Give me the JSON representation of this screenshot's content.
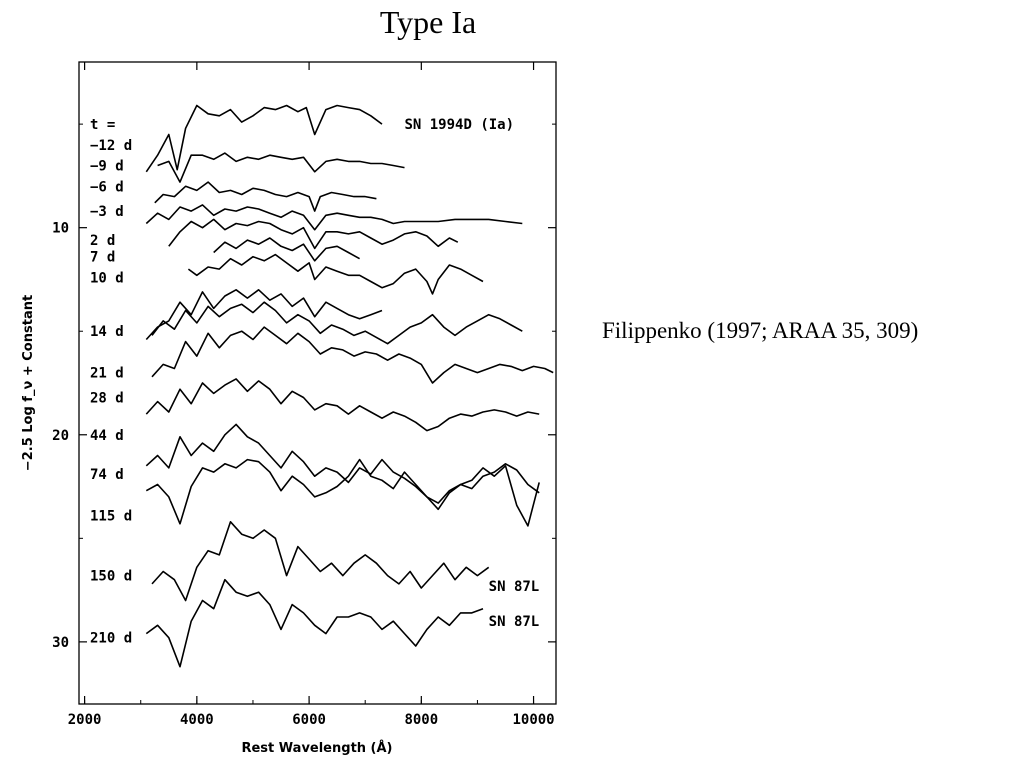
{
  "slide": {
    "title": "Type Ia",
    "citation": "Filippenko (1997; ARAA 35, 309)"
  },
  "chart_data": {
    "type": "line",
    "title": "",
    "xlabel": "Rest Wavelength (Å)",
    "ylabel": "−2.5 Log f_ν + Constant",
    "xlim": [
      1900,
      10400
    ],
    "ylim": [
      2,
      33
    ],
    "x_ticks": [
      2000,
      4000,
      6000,
      8000,
      10000
    ],
    "y_ticks": [
      10,
      20,
      30
    ],
    "y_inverted": true,
    "grid": false,
    "legend": "none",
    "annotations": [
      {
        "text": "SN 1994D (Ia)",
        "x": 7700,
        "y": 5.0
      },
      {
        "text": "SN 87L",
        "x": 9200,
        "y": 27.3
      },
      {
        "text": "SN 87L",
        "x": 9200,
        "y": 29.0
      }
    ],
    "series": [
      {
        "name": "t =",
        "label_y": 5.0,
        "x": [],
        "y": []
      },
      {
        "name": "−12 d",
        "label_y": 6.0,
        "x": [
          3100,
          3300,
          3500,
          3650,
          3800,
          4000,
          4200,
          4400,
          4600,
          4800,
          5000,
          5200,
          5400,
          5600,
          5800,
          5950,
          6100,
          6300,
          6500,
          6700,
          6900,
          7100,
          7300
        ],
        "y": [
          7.3,
          6.5,
          5.5,
          7.2,
          5.2,
          4.1,
          4.5,
          4.6,
          4.3,
          4.9,
          4.6,
          4.2,
          4.3,
          4.1,
          4.4,
          4.2,
          5.5,
          4.3,
          4.1,
          4.2,
          4.3,
          4.6,
          5.0
        ]
      },
      {
        "name": "−9 d",
        "label_y": 7.0,
        "x": [
          3300,
          3500,
          3700,
          3900,
          4100,
          4300,
          4500,
          4700,
          4900,
          5100,
          5300,
          5500,
          5700,
          5900,
          6100,
          6300,
          6500,
          6700,
          6900,
          7100,
          7300,
          7500,
          7700
        ],
        "y": [
          7.0,
          6.8,
          7.8,
          6.5,
          6.5,
          6.7,
          6.4,
          6.8,
          6.6,
          6.7,
          6.5,
          6.6,
          6.7,
          6.6,
          7.3,
          6.8,
          6.7,
          6.8,
          6.8,
          6.9,
          6.9,
          7.0,
          7.1
        ]
      },
      {
        "name": "−6 d",
        "label_y": 8.0,
        "x": [
          3250,
          3400,
          3600,
          3800,
          4000,
          4200,
          4400,
          4600,
          4800,
          5000,
          5200,
          5400,
          5600,
          5800,
          6000,
          6100,
          6200,
          6400,
          6600,
          6800,
          7000,
          7200
        ],
        "y": [
          8.8,
          8.4,
          8.5,
          8.0,
          8.2,
          7.8,
          8.3,
          8.2,
          8.4,
          8.1,
          8.2,
          8.4,
          8.5,
          8.3,
          8.5,
          9.2,
          8.5,
          8.3,
          8.4,
          8.5,
          8.5,
          8.6
        ]
      },
      {
        "name": "−3 d",
        "label_y": 9.2,
        "x": [
          3100,
          3300,
          3500,
          3700,
          3900,
          4100,
          4300,
          4500,
          4700,
          4900,
          5100,
          5300,
          5500,
          5700,
          5900,
          6100,
          6300,
          6500,
          6700,
          6900,
          7100,
          7300,
          7500,
          7700,
          8000,
          8300,
          8600,
          8900,
          9200,
          9500,
          9800
        ],
        "y": [
          9.8,
          9.3,
          9.6,
          9.0,
          9.2,
          8.9,
          9.4,
          9.1,
          9.2,
          9.0,
          9.1,
          9.3,
          9.5,
          9.2,
          9.4,
          10.1,
          9.4,
          9.3,
          9.4,
          9.5,
          9.5,
          9.6,
          9.8,
          9.7,
          9.7,
          9.7,
          9.6,
          9.6,
          9.6,
          9.7,
          9.8
        ]
      },
      {
        "name": "2 d",
        "label_y": 10.6,
        "x": [
          3500,
          3700,
          3900,
          4100,
          4300,
          4500,
          4700,
          4900,
          5100,
          5300,
          5500,
          5700,
          5900,
          6100,
          6300,
          6500,
          6700,
          6900,
          7100,
          7300,
          7500,
          7700,
          7900,
          8100,
          8300,
          8500,
          8650
        ],
        "y": [
          10.9,
          10.2,
          9.7,
          10.0,
          9.6,
          10.1,
          9.8,
          9.9,
          9.7,
          9.8,
          10.1,
          10.3,
          10.0,
          11.0,
          10.2,
          10.2,
          10.3,
          10.2,
          10.5,
          10.8,
          10.6,
          10.3,
          10.2,
          10.4,
          10.9,
          10.5,
          10.7
        ]
      },
      {
        "name": "7 d",
        "label_y": 11.4,
        "x": [
          4300,
          4500,
          4700,
          4900,
          5100,
          5300,
          5500,
          5700,
          5900,
          6100,
          6300,
          6500,
          6700,
          6900
        ],
        "y": [
          11.2,
          10.7,
          11.0,
          10.6,
          10.8,
          10.5,
          10.9,
          11.1,
          10.8,
          11.6,
          11.0,
          10.9,
          11.2,
          11.5
        ]
      },
      {
        "name": "10 d",
        "label_y": 12.4,
        "x": [
          3850,
          4000,
          4200,
          4400,
          4600,
          4800,
          5000,
          5200,
          5400,
          5600,
          5800,
          6000,
          6100,
          6300,
          6500,
          6700,
          6900,
          7100,
          7300,
          7500,
          7700,
          7900,
          8100,
          8200,
          8300,
          8500,
          8700,
          8900,
          9100
        ],
        "y": [
          12.0,
          12.3,
          11.9,
          12.0,
          11.5,
          11.8,
          11.4,
          11.6,
          11.3,
          11.7,
          12.1,
          11.7,
          12.5,
          11.9,
          12.1,
          12.3,
          12.3,
          12.6,
          12.9,
          12.7,
          12.2,
          12.0,
          12.6,
          13.2,
          12.5,
          11.8,
          12.0,
          12.3,
          12.6
        ]
      },
      {
        "name": "14 d",
        "label_y": 15.0,
        "x": [
          3100,
          3300,
          3500,
          3700,
          3900,
          4100,
          4300,
          4500,
          4700,
          4900,
          5100,
          5300,
          5500,
          5700,
          5900,
          6100,
          6300,
          6500,
          6700,
          6900,
          7100,
          7300
        ],
        "y": [
          15.4,
          14.8,
          14.5,
          13.6,
          14.2,
          13.1,
          13.9,
          13.3,
          13.0,
          13.4,
          13.0,
          13.5,
          13.2,
          13.8,
          13.4,
          14.3,
          13.6,
          13.9,
          14.2,
          14.4,
          14.2,
          14.0
        ]
      },
      {
        "name": "21 d",
        "label_y": 17.0,
        "x": [
          3200,
          3400,
          3600,
          3800,
          4000,
          4200,
          4400,
          4600,
          4800,
          5000,
          5200,
          5400,
          5600,
          5800,
          6000,
          6200,
          6400,
          6600,
          6800,
          7000,
          7200,
          7400,
          7600,
          7800,
          8000,
          8200,
          8400,
          8600,
          8800,
          9000,
          9200,
          9400,
          9600,
          9800
        ],
        "y": [
          15.2,
          14.5,
          14.9,
          14.0,
          14.6,
          13.8,
          14.3,
          13.9,
          13.7,
          14.1,
          13.6,
          14.0,
          14.6,
          14.2,
          14.5,
          15.1,
          14.7,
          14.9,
          15.2,
          15.0,
          15.3,
          15.6,
          15.2,
          14.8,
          14.6,
          14.2,
          14.8,
          15.2,
          14.8,
          14.5,
          14.2,
          14.4,
          14.7,
          15.0
        ]
      },
      {
        "name": "28 d",
        "label_y": 18.2,
        "x": [
          3200,
          3400,
          3600,
          3800,
          4000,
          4200,
          4400,
          4600,
          4800,
          5000,
          5200,
          5400,
          5600,
          5800,
          6000,
          6200,
          6400,
          6600,
          6800,
          7000,
          7200,
          7400,
          7600,
          7800,
          8000,
          8200,
          8400,
          8600,
          8800,
          9000,
          9200,
          9400,
          9600,
          9800,
          10000,
          10200,
          10350
        ],
        "y": [
          17.2,
          16.6,
          16.8,
          15.5,
          16.2,
          15.1,
          15.8,
          15.2,
          15.0,
          15.4,
          14.8,
          15.2,
          15.6,
          15.1,
          15.5,
          16.1,
          15.8,
          15.9,
          16.2,
          16.0,
          16.1,
          16.4,
          16.1,
          16.3,
          16.6,
          17.5,
          17.0,
          16.6,
          16.8,
          17.0,
          16.8,
          16.6,
          16.7,
          16.9,
          16.7,
          16.8,
          17.0
        ]
      },
      {
        "name": "44 d",
        "label_y": 20.0,
        "x": [
          3100,
          3300,
          3500,
          3700,
          3900,
          4100,
          4300,
          4500,
          4700,
          4900,
          5100,
          5300,
          5500,
          5700,
          5900,
          6100,
          6300,
          6500,
          6700,
          6900,
          7100,
          7300,
          7500,
          7700,
          7900,
          8100,
          8300,
          8500,
          8700,
          8900,
          9100,
          9300,
          9500,
          9700,
          9900,
          10100
        ],
        "y": [
          19.0,
          18.4,
          18.9,
          17.8,
          18.5,
          17.5,
          18.0,
          17.6,
          17.3,
          17.9,
          17.4,
          17.8,
          18.5,
          17.9,
          18.2,
          18.8,
          18.5,
          18.6,
          19.0,
          18.6,
          18.9,
          19.2,
          18.9,
          19.1,
          19.4,
          19.8,
          19.6,
          19.2,
          19.0,
          19.1,
          18.9,
          18.8,
          18.9,
          19.1,
          18.9,
          19.0
        ]
      },
      {
        "name": "74 d",
        "label_y": 21.9,
        "x": [
          3100,
          3300,
          3500,
          3700,
          3900,
          4100,
          4300,
          4500,
          4700,
          4900,
          5100,
          5300,
          5500,
          5700,
          5900,
          6100,
          6300,
          6500,
          6700,
          6900,
          7100,
          7300,
          7500,
          7700,
          7900,
          8100,
          8300,
          8500,
          8700,
          8900,
          9100,
          9300,
          9500,
          9700,
          9900,
          10100
        ],
        "y": [
          21.5,
          21.0,
          21.6,
          20.1,
          21.0,
          20.4,
          20.8,
          20.0,
          19.5,
          20.1,
          20.4,
          21.0,
          21.6,
          20.8,
          21.3,
          22.0,
          21.6,
          21.8,
          22.3,
          21.6,
          21.9,
          21.2,
          21.8,
          22.1,
          22.5,
          23.0,
          23.3,
          22.7,
          22.4,
          22.6,
          22.0,
          21.8,
          21.4,
          21.7,
          22.4,
          22.8
        ]
      },
      {
        "name": "115 d",
        "label_y": 23.9,
        "x": [
          3100,
          3300,
          3500,
          3700,
          3900,
          4100,
          4300,
          4500,
          4700,
          4900,
          5100,
          5300,
          5500,
          5700,
          5900,
          6100,
          6300,
          6500,
          6700,
          6900,
          7100,
          7300,
          7500,
          7700,
          7900,
          8100,
          8300,
          8500,
          8700,
          8900,
          9100,
          9300,
          9500,
          9700,
          9900,
          10100
        ],
        "y": [
          22.7,
          22.4,
          23.0,
          24.3,
          22.5,
          21.6,
          21.8,
          21.4,
          21.6,
          21.2,
          21.3,
          21.8,
          22.7,
          22.0,
          22.4,
          23.0,
          22.8,
          22.5,
          22.0,
          21.2,
          22.0,
          22.2,
          22.6,
          21.8,
          22.4,
          23.0,
          23.6,
          22.8,
          22.4,
          22.2,
          21.6,
          22.0,
          21.5,
          23.4,
          24.4,
          22.3
        ]
      },
      {
        "name": "150 d",
        "label_y": 26.8,
        "x": [
          3200,
          3400,
          3600,
          3800,
          4000,
          4200,
          4400,
          4600,
          4800,
          5000,
          5200,
          5400,
          5600,
          5800,
          6000,
          6200,
          6400,
          6600,
          6800,
          7000,
          7200,
          7400,
          7600,
          7800,
          8000,
          8200,
          8400,
          8600,
          8800,
          9000,
          9200
        ],
        "y": [
          27.2,
          26.6,
          27.0,
          28.0,
          26.4,
          25.6,
          25.8,
          24.2,
          24.8,
          25.0,
          24.6,
          25.0,
          26.8,
          25.4,
          26.0,
          26.6,
          26.2,
          26.8,
          26.2,
          25.8,
          26.2,
          26.8,
          27.2,
          26.6,
          27.4,
          26.8,
          26.2,
          27.0,
          26.4,
          26.8,
          26.4
        ]
      },
      {
        "name": "210 d",
        "label_y": 29.8,
        "x": [
          3100,
          3300,
          3500,
          3700,
          3900,
          4100,
          4300,
          4500,
          4700,
          4900,
          5100,
          5300,
          5500,
          5700,
          5900,
          6100,
          6300,
          6500,
          6700,
          6900,
          7100,
          7300,
          7500,
          7700,
          7900,
          8100,
          8300,
          8500,
          8700,
          8900,
          9100
        ],
        "y": [
          29.6,
          29.2,
          29.8,
          31.2,
          29.0,
          28.0,
          28.4,
          27.0,
          27.6,
          27.8,
          27.6,
          28.2,
          29.4,
          28.2,
          28.6,
          29.2,
          29.6,
          28.8,
          28.8,
          28.6,
          28.8,
          29.4,
          29.0,
          29.6,
          30.2,
          29.4,
          28.8,
          29.2,
          28.6,
          28.6,
          28.4
        ]
      }
    ]
  }
}
